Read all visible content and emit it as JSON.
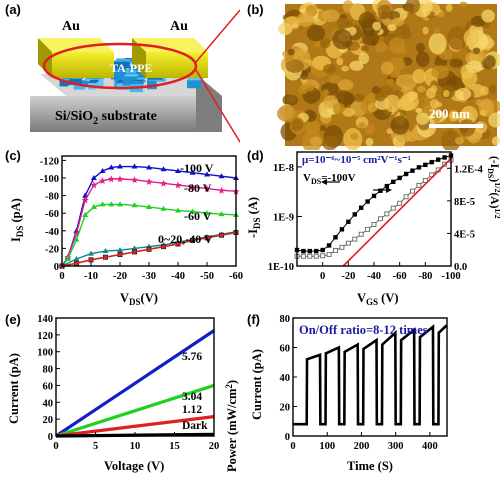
{
  "panels": {
    "a": {
      "label": "(a)",
      "electrode_left": "Au",
      "electrode_right": "Au",
      "film_label": "TA-PPE",
      "substrate_label": "Si/SiO",
      "substrate_sub": "2",
      "substrate_tail": " substrate",
      "colors": {
        "gold": "#e8e400",
        "blue": "#2a9de0",
        "substrate": "#9a9a9a",
        "ellipse": "#e02020"
      }
    },
    "b": {
      "label": "(b)",
      "scalebar": "200 nm",
      "colors": {
        "afm_dark": "#8a5a08",
        "afm_light": "#f2c44a"
      }
    },
    "c": {
      "label": "(c)"
    },
    "d": {
      "label": "(d)",
      "mobility": "μ=10⁻⁶~10⁻⁵ cm²V⁻¹s⁻¹",
      "vds": "V",
      "vds_sub": "DS",
      "vds_val": "=-100V"
    },
    "e": {
      "label": "(e)"
    },
    "f": {
      "label": "(f)",
      "ratio_text": "On/Off ratio=8-12 times"
    }
  },
  "chart_data": [
    {
      "id": "c",
      "type": "line",
      "xlabel": "V",
      "xlabel_sub": "DS",
      "xlabel_tail": "(V)",
      "ylabel": "I",
      "ylabel_sub": "DS",
      "ylabel_tail": " (pA)",
      "xlim": [
        0,
        -60
      ],
      "ylim": [
        0,
        -125
      ],
      "x_ticks": [
        0,
        -10,
        -20,
        -30,
        -40,
        -50,
        -60
      ],
      "y_ticks": [
        0,
        -20,
        -40,
        -60,
        -80,
        -100,
        -120
      ],
      "x_tick_labels": [
        "0",
        "-10",
        "-20",
        "-30",
        "-40",
        "-50",
        "-60"
      ],
      "y_tick_labels": [
        "0",
        "-20",
        "-40",
        "-60",
        "-80",
        "-100",
        "-120"
      ],
      "series": [
        {
          "name": "-100 V",
          "color": "#1010c8",
          "marker": "tri",
          "x": [
            0,
            -2,
            -5,
            -8,
            -11,
            -14,
            -17,
            -20,
            -25,
            -30,
            -35,
            -40,
            -45,
            -50,
            -55,
            -60
          ],
          "y": [
            0,
            -10,
            -40,
            -80,
            -100,
            -108,
            -112,
            -113,
            -113,
            -112,
            -110,
            -108,
            -106,
            -104,
            -102,
            -100
          ]
        },
        {
          "name": "-80 V",
          "color": "#e0208a",
          "marker": "star",
          "x": [
            0,
            -2,
            -5,
            -8,
            -11,
            -14,
            -17,
            -20,
            -25,
            -30,
            -35,
            -40,
            -45,
            -50,
            -55,
            -60
          ],
          "y": [
            0,
            -10,
            -37,
            -75,
            -92,
            -97,
            -99,
            -99,
            -98,
            -96,
            -94,
            -92,
            -90,
            -88,
            -86,
            -85
          ]
        },
        {
          "name": "-60 V",
          "color": "#20d020",
          "marker": "tri",
          "x": [
            0,
            -2,
            -5,
            -8,
            -11,
            -14,
            -17,
            -20,
            -25,
            -30,
            -35,
            -40,
            -45,
            -50,
            -55,
            -60
          ],
          "y": [
            0,
            -8,
            -30,
            -58,
            -67,
            -70,
            -70,
            -70,
            -69,
            -67,
            -65,
            -63,
            -62,
            -60,
            -59,
            -58
          ]
        },
        {
          "name": "-40 V",
          "color": "#108888",
          "marker": "tri",
          "x": [
            0,
            -5,
            -10,
            -15,
            -20,
            -25,
            -30,
            -35,
            -40,
            -45,
            -50,
            -55,
            -60
          ],
          "y": [
            0,
            -8,
            -14,
            -17,
            -18,
            -20,
            -22,
            -24,
            -27,
            -30,
            -33,
            -36,
            -39
          ]
        },
        {
          "name": "-20 V",
          "color": "#202020",
          "marker": "sq",
          "x": [
            0,
            -5,
            -10,
            -15,
            -20,
            -25,
            -30,
            -35,
            -40,
            -45,
            -50,
            -55,
            -60
          ],
          "y": [
            0,
            -3,
            -7,
            -10,
            -13,
            -16,
            -19,
            -22,
            -25,
            -29,
            -32,
            -35,
            -38
          ]
        },
        {
          "name": "0 V",
          "color": "#e02020",
          "marker": "dot",
          "x": [
            0,
            -5,
            -10,
            -15,
            -20,
            -25,
            -30,
            -35,
            -40,
            -45,
            -50,
            -55,
            -60
          ],
          "y": [
            0,
            -3,
            -7,
            -10,
            -13,
            -16,
            -19,
            -22,
            -25,
            -29,
            -32,
            -35,
            -38
          ]
        }
      ],
      "annotations": [
        "-100 V",
        "-80 V",
        "-60 V",
        "0~20,-40 V"
      ]
    },
    {
      "id": "d",
      "type": "line",
      "xlabel": "V",
      "xlabel_sub": "GS",
      "xlabel_tail": " (V)",
      "ylabel": "-I",
      "ylabel_sub": "DS",
      "ylabel_tail": " (A)",
      "ylabel2": "(-I",
      "ylabel2_sub": "DS",
      "ylabel2_tail": ")",
      "ylabel2_sup": "1/2",
      "ylabel2_tail2": "(A)",
      "ylabel2_sup2": "1/2",
      "xlim": [
        20,
        -100
      ],
      "ylim_log": [
        1e-10,
        2e-08
      ],
      "y2lim": [
        0,
        0.00014
      ],
      "x_ticks": [
        0,
        -20,
        -40,
        -60,
        -80,
        -100
      ],
      "x_tick_labels": [
        "0",
        "-20",
        "-40",
        "-60",
        "-80",
        "-100"
      ],
      "y_tick_labels": [
        "1E-10",
        "1E-9",
        "1E-8"
      ],
      "y2_ticks": [
        0,
        4e-05,
        8e-05,
        0.00012
      ],
      "y2_tick_labels": [
        "0.0",
        "4E-5",
        "8E-5",
        "1.2E-4"
      ],
      "series": [
        {
          "name": "-IDS",
          "color": "#000000",
          "marker": "sq_filled",
          "x": [
            20,
            15,
            10,
            5,
            0,
            -5,
            -10,
            -15,
            -20,
            -25,
            -30,
            -35,
            -40,
            -45,
            -50,
            -55,
            -60,
            -65,
            -70,
            -75,
            -80,
            -85,
            -90,
            -95,
            -100
          ],
          "y": [
            2.1e-10,
            2e-10,
            2e-10,
            2e-10,
            2.1e-10,
            2.6e-10,
            3.8e-10,
            5.5e-10,
            7.8e-10,
            1.1e-09,
            1.5e-09,
            2e-09,
            2.6e-09,
            3.3e-09,
            4.1e-09,
            5e-09,
            6e-09,
            7.2e-09,
            8.4e-09,
            9.8e-09,
            1.1e-08,
            1.25e-08,
            1.4e-08,
            1.55e-08,
            1.7e-08
          ]
        },
        {
          "name": "sqrt(-IDS)",
          "color": "#666666",
          "marker": "sq_open",
          "axis": "right",
          "x": [
            20,
            15,
            10,
            5,
            0,
            -5,
            -10,
            -15,
            -20,
            -25,
            -30,
            -35,
            -40,
            -45,
            -50,
            -55,
            -60,
            -65,
            -70,
            -75,
            -80,
            -85,
            -90,
            -95,
            -100
          ],
          "y": [
            1.2e-05,
            1.2e-05,
            1.2e-05,
            1.2e-05,
            1.25e-05,
            1.4e-05,
            1.9e-05,
            2.3e-05,
            2.8e-05,
            3.3e-05,
            3.9e-05,
            4.5e-05,
            5.1e-05,
            5.8e-05,
            6.4e-05,
            7.1e-05,
            7.7e-05,
            8.5e-05,
            9.2e-05,
            9.9e-05,
            0.000105,
            0.000112,
            0.000118,
            0.000125,
            0.00013
          ]
        },
        {
          "name": "fit",
          "color": "#e02020",
          "marker": "none",
          "axis": "right",
          "x": [
            -16,
            -100
          ],
          "y": [
            0,
            0.000132
          ]
        }
      ]
    },
    {
      "id": "e",
      "type": "line",
      "xlabel": "Voltage (V)",
      "ylabel": "Current (pA)",
      "xlim": [
        0,
        20
      ],
      "ylim": [
        0,
        140
      ],
      "x_ticks": [
        0,
        5,
        10,
        15,
        20
      ],
      "y_ticks": [
        0,
        20,
        40,
        60,
        80,
        100,
        120,
        140
      ],
      "x_tick_labels": [
        "0",
        "5",
        "10",
        "15",
        "20"
      ],
      "y_tick_labels": [
        "0",
        "20",
        "40",
        "60",
        "80",
        "100",
        "120",
        "140"
      ],
      "series": [
        {
          "name": "5.76",
          "color": "#1020c8",
          "x": [
            0,
            20
          ],
          "y": [
            0,
            125
          ]
        },
        {
          "name": "3.04",
          "color": "#20d020",
          "x": [
            0,
            20
          ],
          "y": [
            0,
            60
          ]
        },
        {
          "name": "1.12",
          "color": "#e02020",
          "x": [
            0,
            20
          ],
          "y": [
            0,
            23
          ]
        },
        {
          "name": "Dark",
          "color": "#000000",
          "x": [
            0,
            20
          ],
          "y": [
            0,
            2
          ]
        }
      ],
      "legend_title": "Power (mW/cm",
      "legend_title_sup": "2",
      "legend_title_tail": ")"
    },
    {
      "id": "f",
      "type": "line",
      "xlabel": "Time (S)",
      "ylabel": "Current (pA)",
      "xlim": [
        0,
        450
      ],
      "ylim": [
        0,
        80
      ],
      "x_ticks": [
        0,
        100,
        200,
        300,
        400
      ],
      "y_ticks": [
        0,
        20,
        40,
        60,
        80
      ],
      "x_tick_labels": [
        "0",
        "100",
        "200",
        "300",
        "400"
      ],
      "y_tick_labels": [
        "0",
        "20",
        "40",
        "60",
        "80"
      ],
      "dark_level": 8,
      "pulses": [
        {
          "on": 40,
          "off": 80,
          "lo": 52,
          "hi": 55
        },
        {
          "on": 95,
          "off": 135,
          "lo": 56,
          "hi": 60
        },
        {
          "on": 150,
          "off": 190,
          "lo": 57,
          "hi": 62
        },
        {
          "on": 205,
          "off": 245,
          "lo": 59,
          "hi": 65
        },
        {
          "on": 260,
          "off": 300,
          "lo": 62,
          "hi": 70
        },
        {
          "on": 315,
          "off": 355,
          "lo": 65,
          "hi": 72
        },
        {
          "on": 370,
          "off": 410,
          "lo": 67,
          "hi": 74
        },
        {
          "on": 425,
          "off": 450,
          "lo": 70,
          "hi": 75
        }
      ],
      "color": "#000000"
    }
  ]
}
